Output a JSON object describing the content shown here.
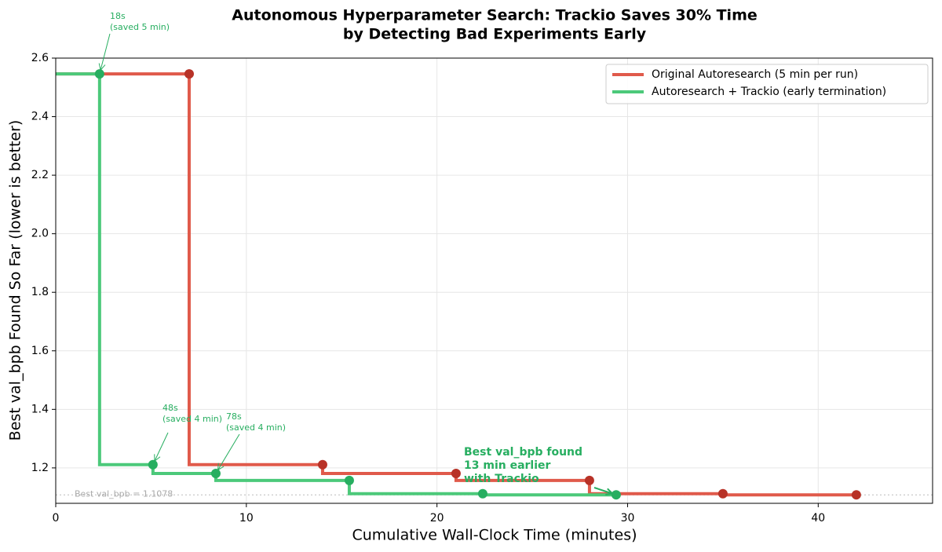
{
  "chart_data": {
    "type": "step",
    "title": [
      "Autonomous Hyperparameter Search: Trackio Saves 30% Time",
      "by Detecting Bad Experiments Early"
    ],
    "x_label": "Cumulative Wall-Clock Time (minutes)",
    "y_label": "Best val_bpb Found So Far (lower is better)",
    "xlim": [
      0,
      46
    ],
    "ylim": [
      1.079,
      2.6
    ],
    "xticks": [
      0,
      10,
      20,
      30,
      40
    ],
    "yticks": [
      1.2,
      1.4,
      1.6,
      1.8,
      {
        "value": 2.0,
        "label": "2.0"
      },
      2.2,
      2.4,
      2.6
    ],
    "grid": true,
    "legend": "upper right",
    "series": [
      {
        "name": "Original Autoresearch (5 min per run)",
        "color": "#e05a4b",
        "marker_color": "#b83227",
        "x": [
          7,
          14,
          21,
          28,
          35,
          42
        ],
        "values": [
          2.546,
          1.211,
          1.181,
          1.157,
          1.112,
          1.108
        ]
      },
      {
        "name": "Autoresearch + Trackio (early termination)",
        "color": "#4cc97a",
        "marker_color": "#27ae60",
        "x": [
          2.3,
          5.1,
          8.4,
          15.4,
          22.4,
          29.4
        ],
        "values": [
          2.546,
          1.211,
          1.181,
          1.157,
          1.112,
          1.108
        ]
      }
    ],
    "reference_line": {
      "value": 1.1078,
      "label": "Best val_bpb = 1.1078"
    },
    "annotations": [
      {
        "lines": [
          "18s",
          "(saved 5 min)"
        ]
      },
      {
        "lines": [
          "48s",
          "(saved 4 min)"
        ]
      },
      {
        "lines": [
          "78s",
          "(saved 4 min)"
        ]
      },
      {
        "lines": [
          "Best val_bpb found",
          "13 min earlier",
          "with Trackio"
        ]
      }
    ]
  }
}
